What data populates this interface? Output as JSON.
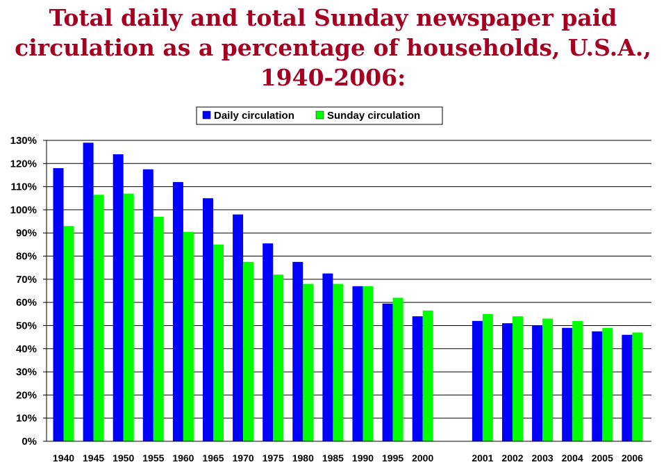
{
  "chart_data": {
    "type": "bar",
    "title_lines": [
      "Total daily and total Sunday newspaper paid",
      "circulation as a percentage of households, U.S.A.,",
      "1940-2006:"
    ],
    "categories": [
      "1940",
      "1945",
      "1950",
      "1955",
      "1960",
      "1965",
      "1970",
      "1975",
      "1980",
      "1985",
      "1990",
      "1995",
      "2000",
      "2001",
      "2002",
      "2003",
      "2004",
      "2005",
      "2006"
    ],
    "series": [
      {
        "name": "Daily circulation",
        "color": "#0000ff",
        "values": [
          118,
          129,
          124,
          117.5,
          112,
          105,
          98,
          85.5,
          77.5,
          72.5,
          67,
          59.5,
          54,
          52,
          51,
          50,
          49,
          47.5,
          46
        ]
      },
      {
        "name": "Sunday circulation",
        "color": "#00ff00",
        "values": [
          93,
          106.5,
          107,
          97,
          90.5,
          85,
          77.5,
          72,
          68,
          68,
          67,
          62,
          56.5,
          55,
          54,
          53,
          52,
          49,
          47
        ]
      }
    ],
    "ylim": [
      0,
      130
    ],
    "ytick_step": 10,
    "ytick_format": "percent",
    "grid": true,
    "legend_position": "top-center",
    "xlabel": "",
    "ylabel": ""
  }
}
